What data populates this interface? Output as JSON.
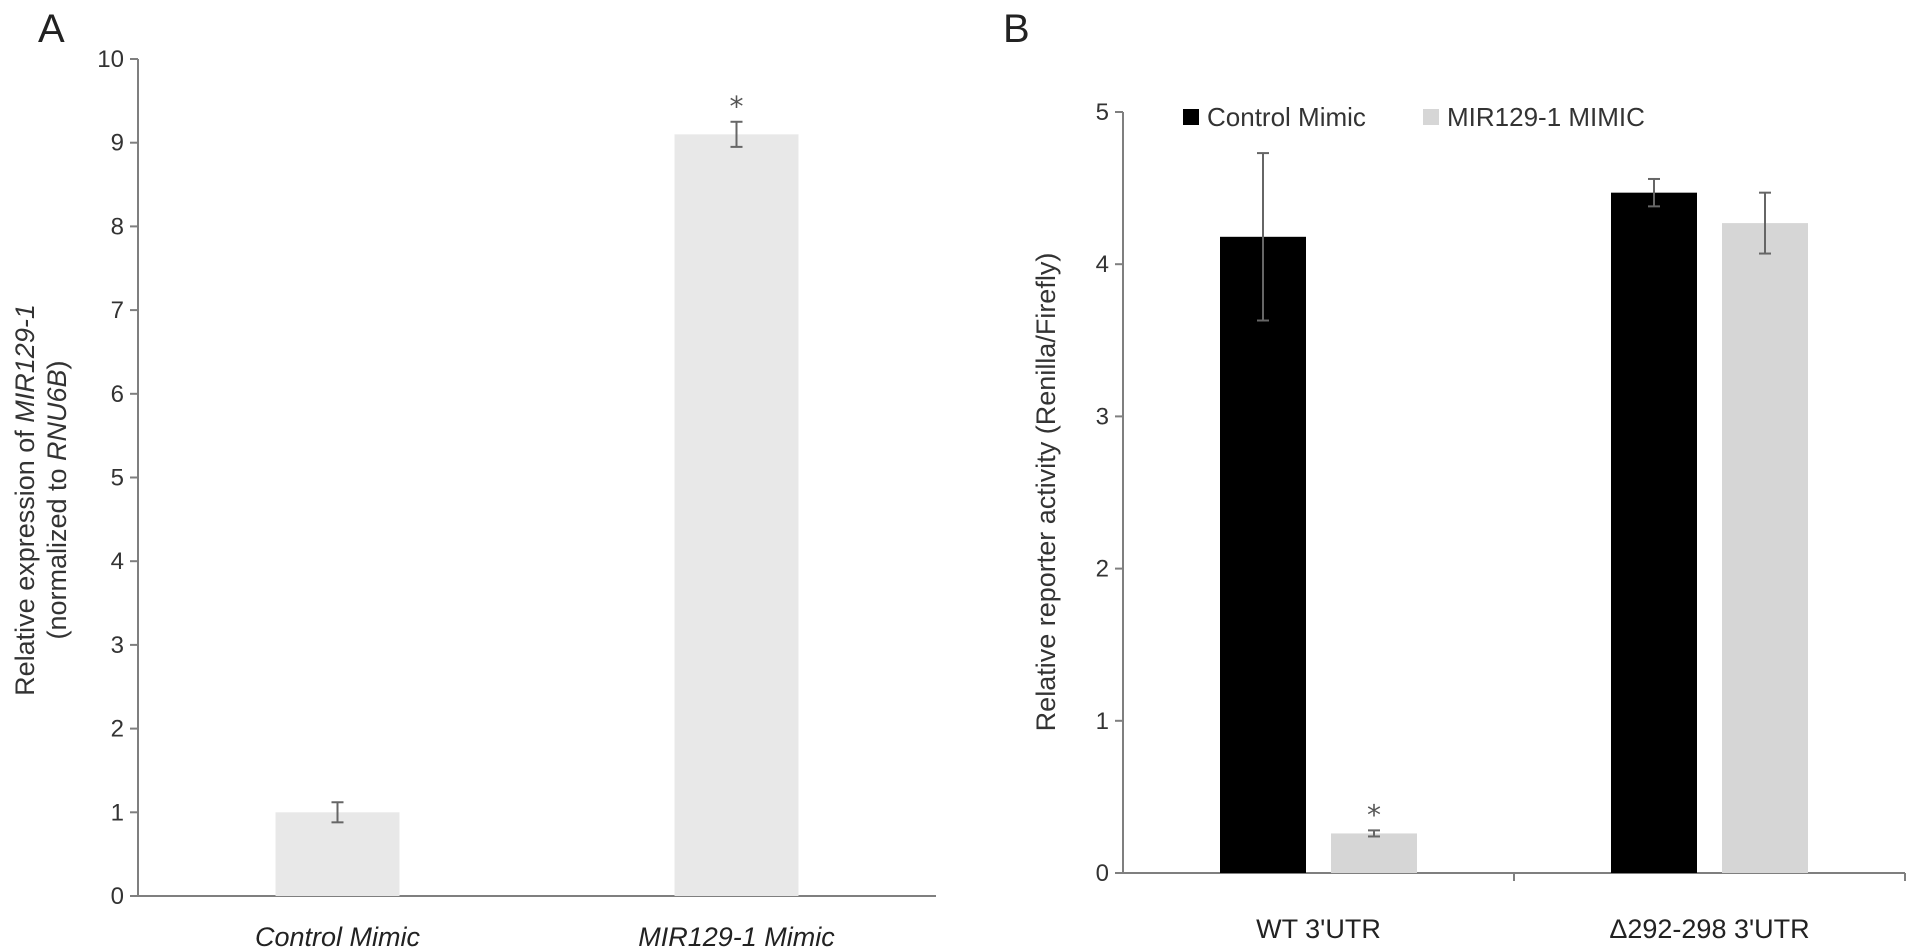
{
  "colors": {
    "control": "#000000",
    "mimic": "#d6d6d6",
    "panelA_bar": "#e8e8e8",
    "axis": "#7f7f7f",
    "error": "#666666"
  },
  "chart_data": [
    {
      "panel": "A",
      "type": "bar",
      "ylabel_lines": [
        [
          {
            "text": "Relative expression of ",
            "italic": false
          },
          {
            "text": "MIR129-1",
            "italic": true
          }
        ],
        [
          {
            "text": "(normalized to ",
            "italic": false
          },
          {
            "text": "RNU6B",
            "italic": true
          },
          {
            "text": ")",
            "italic": false
          }
        ]
      ],
      "xlabel": "",
      "categories": [
        "Control Mimic",
        "MIR129-1 Mimic"
      ],
      "categories_italic": true,
      "values": [
        1.0,
        9.1
      ],
      "errors": [
        0.12,
        0.15
      ],
      "significance": [
        "",
        "*"
      ],
      "ylim": [
        0,
        10
      ],
      "yticks": [
        0,
        1,
        2,
        3,
        4,
        5,
        6,
        7,
        8,
        9,
        10
      ],
      "grid": false,
      "legend": null
    },
    {
      "panel": "B",
      "type": "bar",
      "ylabel": "Relative reporter activity (Renilla/Firefly)",
      "xlabel": "",
      "categories": [
        "WT 3'UTR",
        "Δ292-298 3'UTR"
      ],
      "series": [
        {
          "name": "Control Mimic",
          "values": [
            4.18,
            4.47
          ],
          "errors": [
            0.55,
            0.09
          ],
          "significance": [
            "",
            ""
          ]
        },
        {
          "name": "MIR129-1 MIMIC",
          "values": [
            0.26,
            4.27
          ],
          "errors": [
            0.02,
            0.2
          ],
          "significance": [
            "*",
            ""
          ]
        }
      ],
      "ylim": [
        0,
        5
      ],
      "yticks": [
        0,
        1,
        2,
        3,
        4,
        5
      ],
      "grid": false,
      "legend": "top-left"
    }
  ]
}
